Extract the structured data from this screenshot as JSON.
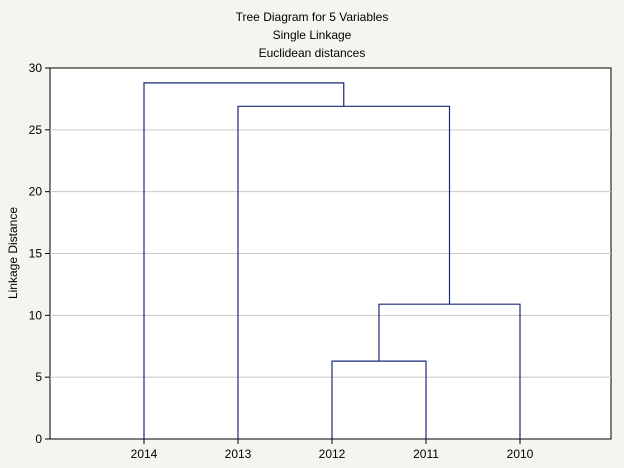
{
  "chart_data": {
    "type": "dendrogram",
    "title": [
      "Tree Diagram for 5 Variables",
      "Single Linkage",
      "Euclidean distances"
    ],
    "xlabel": "",
    "ylabel": "Linkage Distance",
    "ylim": [
      0,
      30
    ],
    "yticks": [
      0,
      5,
      10,
      15,
      20,
      25,
      30
    ],
    "grid": true,
    "leaves": [
      "2014",
      "2013",
      "2012",
      "2011",
      "2010"
    ],
    "merges": [
      {
        "left": "2012",
        "right": "2011",
        "height": 6.3
      },
      {
        "left": "2012+2011",
        "right": "2010",
        "height": 10.9
      },
      {
        "left": "2013",
        "right": "2012+2011+2010",
        "height": 26.9
      },
      {
        "left": "2014",
        "right": "2013+2012+2011+2010",
        "height": 28.8
      }
    ],
    "colors": {
      "line": "#1a2a7a",
      "grid": "#c8c8c8",
      "background": "#f5f4ef",
      "plot": "#ffffff"
    }
  }
}
